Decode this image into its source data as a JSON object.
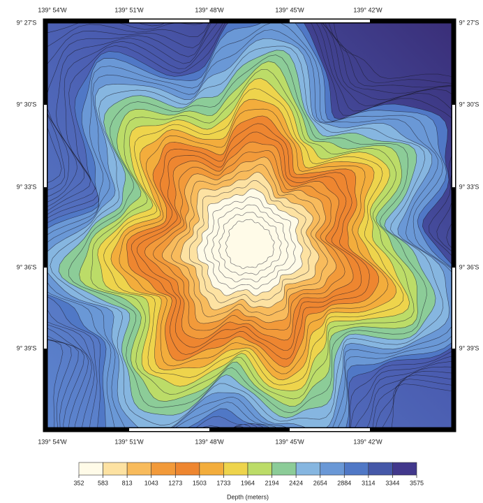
{
  "map": {
    "top_longitudes": [
      "139° 54'W",
      "139° 51'W",
      "139° 48'W",
      "139° 45'W",
      "139° 42'W"
    ],
    "bottom_longitudes": [
      "139° 54'W",
      "139° 51'W",
      "139° 48'W",
      "139° 45'W",
      "139° 42'W"
    ],
    "left_latitudes": [
      "9° 27'S",
      "9° 30'S",
      "9° 33'S",
      "9° 36'S",
      "9° 39'S"
    ],
    "right_latitudes": [
      "9° 27'S",
      "9° 30'S",
      "9° 33'S",
      "9° 36'S",
      "9° 39'S"
    ],
    "colorbar": {
      "ticks": [
        352,
        583,
        813,
        1043,
        1273,
        1503,
        1733,
        1964,
        2194,
        2424,
        2654,
        2884,
        3114,
        3344,
        3575
      ],
      "label": "Depth (meters)"
    }
  }
}
